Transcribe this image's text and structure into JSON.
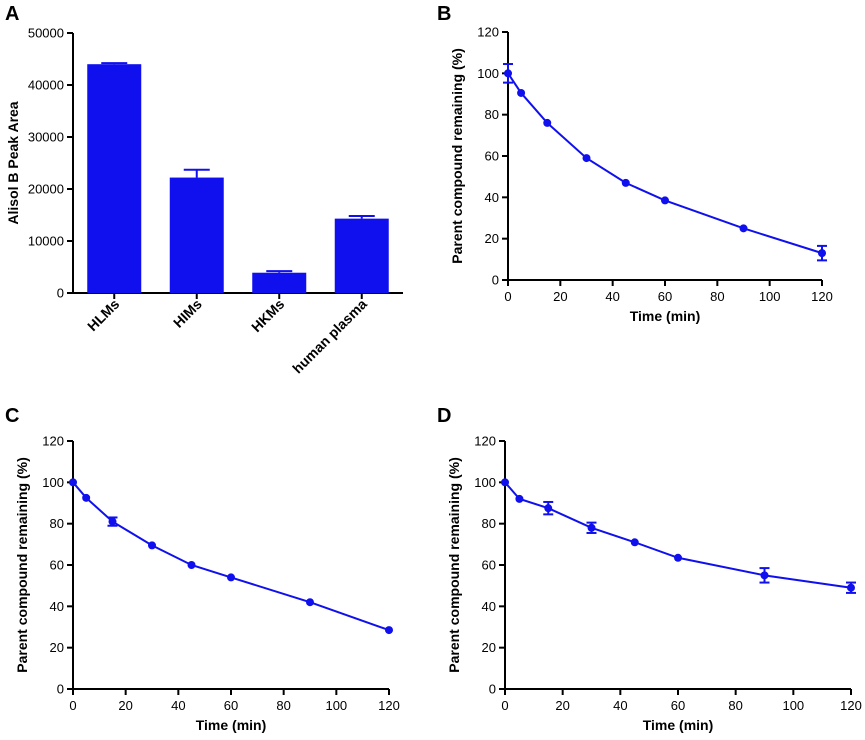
{
  "colors": {
    "series": "#1010ee",
    "axis": "#000000"
  },
  "chart_data": [
    {
      "panel": "A",
      "type": "bar",
      "title": "",
      "xlabel": "",
      "ylabel": "Alisol B Peak Area",
      "categories": [
        "HLMs",
        "HIMs",
        "HKMs",
        "human plasma"
      ],
      "values": [
        44000,
        22200,
        3900,
        14300
      ],
      "errors": [
        200,
        1500,
        300,
        500
      ],
      "ylim": [
        0,
        50000
      ],
      "yticks": [
        0,
        10000,
        20000,
        30000,
        40000,
        50000
      ]
    },
    {
      "panel": "B",
      "type": "line",
      "title": "",
      "xlabel": "Time (min)",
      "ylabel": "Parent compound remaining (%)",
      "x": [
        0,
        5,
        15,
        30,
        45,
        60,
        90,
        120
      ],
      "y": [
        100,
        90.5,
        76,
        59,
        47,
        38.5,
        25,
        13
      ],
      "errors": [
        4.5,
        0,
        0,
        0,
        0,
        0,
        0,
        3.5
      ],
      "xlim": [
        0,
        120
      ],
      "ylim": [
        0,
        120
      ],
      "xticks": [
        0,
        20,
        40,
        60,
        80,
        100,
        120
      ],
      "yticks": [
        0,
        20,
        40,
        60,
        80,
        100,
        120
      ]
    },
    {
      "panel": "C",
      "type": "line",
      "title": "",
      "xlabel": "Time (min)",
      "ylabel": "Parent compound remaining (%)",
      "x": [
        0,
        5,
        15,
        30,
        45,
        60,
        90,
        120
      ],
      "y": [
        100,
        92.5,
        81,
        69.5,
        60,
        54,
        42,
        28.5
      ],
      "errors": [
        0,
        0,
        2,
        0,
        0,
        0,
        0,
        0
      ],
      "xlim": [
        0,
        120
      ],
      "ylim": [
        0,
        120
      ],
      "xticks": [
        0,
        20,
        40,
        60,
        80,
        100,
        120
      ],
      "yticks": [
        0,
        20,
        40,
        60,
        80,
        100,
        120
      ]
    },
    {
      "panel": "D",
      "type": "line",
      "title": "",
      "xlabel": "Time (min)",
      "ylabel": "Parent compound remaining (%)",
      "x": [
        0,
        5,
        15,
        30,
        45,
        60,
        90,
        120
      ],
      "y": [
        100,
        92,
        87.5,
        78,
        71,
        63.5,
        55,
        49
      ],
      "errors": [
        0,
        0,
        3,
        2.5,
        0,
        0,
        3.5,
        2.5
      ],
      "xlim": [
        0,
        120
      ],
      "ylim": [
        0,
        120
      ],
      "xticks": [
        0,
        20,
        40,
        60,
        80,
        100,
        120
      ],
      "yticks": [
        0,
        20,
        40,
        60,
        80,
        100,
        120
      ]
    }
  ]
}
